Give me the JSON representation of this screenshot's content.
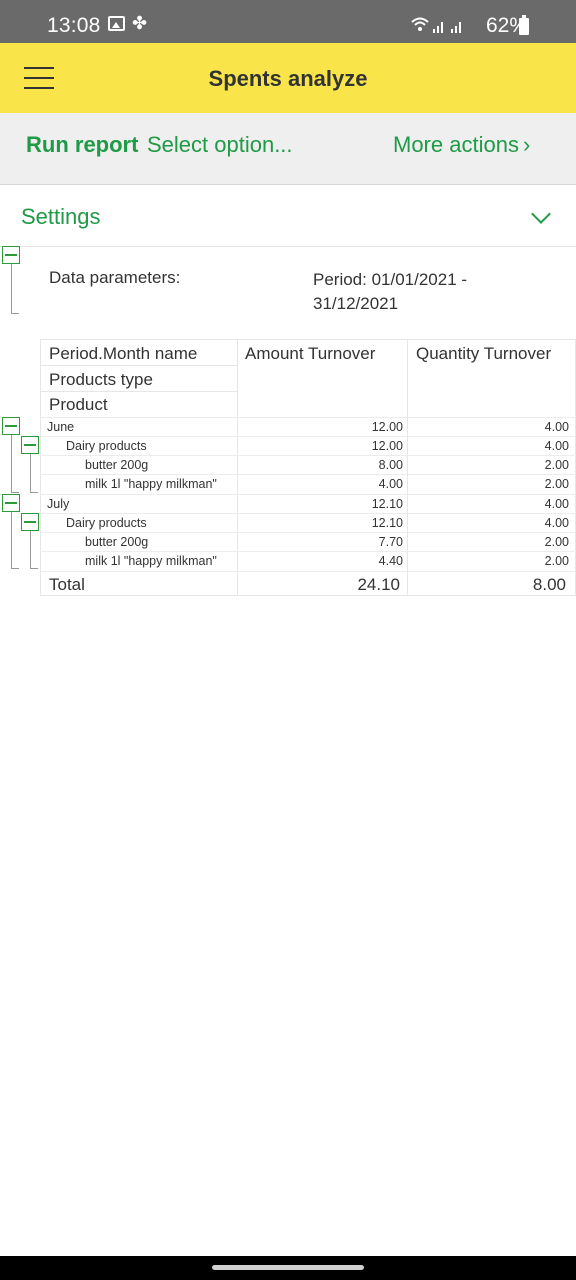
{
  "status_bar": {
    "time": "13:08",
    "battery": "62%",
    "icons": [
      "gallery-icon",
      "fan-icon",
      "wifi-icon",
      "signal-icon",
      "signal-icon",
      "battery-icon"
    ]
  },
  "app_bar": {
    "title": "Spents analyze"
  },
  "command_bar": {
    "run_report": "Run report",
    "select_option": "Select option...",
    "more_actions": "More actions",
    "more_actions_chevron": "›"
  },
  "settings": {
    "label": "Settings"
  },
  "report": {
    "params_label": "Data parameters:",
    "params_value": "Period: 01/01/2021 - 31/12/2021",
    "headers": {
      "group_levels": [
        "Period.Month name",
        "Products type",
        "Product"
      ],
      "amount": "Amount Turnover",
      "quantity": "Quantity Turnover"
    },
    "rows": [
      {
        "level": 0,
        "name": "June",
        "amount": "12.00",
        "quantity": "4.00"
      },
      {
        "level": 1,
        "name": "Dairy products",
        "amount": "12.00",
        "quantity": "4.00"
      },
      {
        "level": 2,
        "name": "butter 200g",
        "amount": "8.00",
        "quantity": "2.00"
      },
      {
        "level": 2,
        "name": "milk 1l \"happy milkman\"",
        "amount": "4.00",
        "quantity": "2.00"
      },
      {
        "level": 0,
        "name": "July",
        "amount": "12.10",
        "quantity": "4.00"
      },
      {
        "level": 1,
        "name": "Dairy products",
        "amount": "12.10",
        "quantity": "4.00"
      },
      {
        "level": 2,
        "name": "butter 200g",
        "amount": "7.70",
        "quantity": "2.00"
      },
      {
        "level": 2,
        "name": "milk 1l \"happy milkman\"",
        "amount": "4.40",
        "quantity": "2.00"
      }
    ],
    "total": {
      "name": "Total",
      "amount": "24.10",
      "quantity": "8.00"
    }
  },
  "colors": {
    "accent_green": "#1f9a46",
    "appbar_yellow": "#f9e44a",
    "statusbar_gray": "#6a6a6a"
  }
}
